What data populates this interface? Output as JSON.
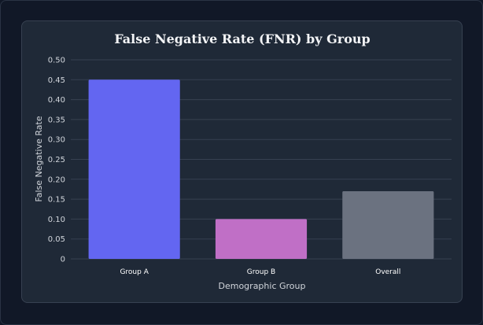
{
  "chart_data": {
    "type": "bar",
    "title": "False Negative Rate (FNR) by Group",
    "xlabel": "Demographic Group",
    "ylabel": "False Negative Rate",
    "categories": [
      "Group A",
      "Group B",
      "Overall"
    ],
    "values": [
      0.45,
      0.1,
      0.17
    ],
    "colors": [
      "#6366f1",
      "#c06fc6",
      "#6b7280"
    ],
    "ylim": [
      0,
      0.5
    ],
    "yticks": [
      "0",
      "0.05",
      "0.10",
      "0.15",
      "0.20",
      "0.25",
      "0.30",
      "0.35",
      "0.40",
      "0.45",
      "0.50"
    ],
    "grid": true,
    "legend": "none"
  },
  "theme": {
    "page_background": "#111827",
    "card_background": "#1f2937",
    "grid_color": "#374151",
    "text_color": "#d1d5db"
  }
}
